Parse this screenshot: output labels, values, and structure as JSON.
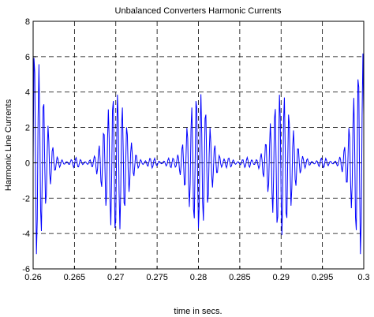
{
  "chart_data": {
    "type": "line",
    "title": "Unbalanced Converters Harmonic Currents",
    "xlabel": "time in secs.",
    "ylabel": "Harmonic Line Currents",
    "xlim": [
      0.26,
      0.3
    ],
    "ylim": [
      -6,
      8
    ],
    "grid": true,
    "grid_style": "dashed",
    "x_ticks": [
      "0.26",
      "0.265",
      "0.27",
      "0.275",
      "0.28",
      "0.285",
      "0.29",
      "0.295",
      "0.3"
    ],
    "y_ticks": [
      "-6",
      "-4",
      "-2",
      "0",
      "2",
      "4",
      "6",
      "8"
    ],
    "series": [
      {
        "color": "#0000ff",
        "sampling": "sampled at 0.0001 s from 0.26 to 0.3 (401 points)",
        "burst_centers_s": [
          0.26,
          0.27,
          0.28,
          0.29,
          0.3
        ],
        "burst_peaks": [
          6.6,
          4.0,
          4.0,
          4.0,
          6.2
        ],
        "burst_troughs": [
          -5.6,
          -4.1,
          -3.8,
          -4.1,
          -5.6
        ],
        "oscillation_period_s": 0.00056,
        "baseline_ripple_amplitude": 0.3
      }
    ]
  },
  "colors": {
    "line": "#0000ff",
    "grid": "#000000",
    "axes": "#000000",
    "background": "#ffffff"
  }
}
